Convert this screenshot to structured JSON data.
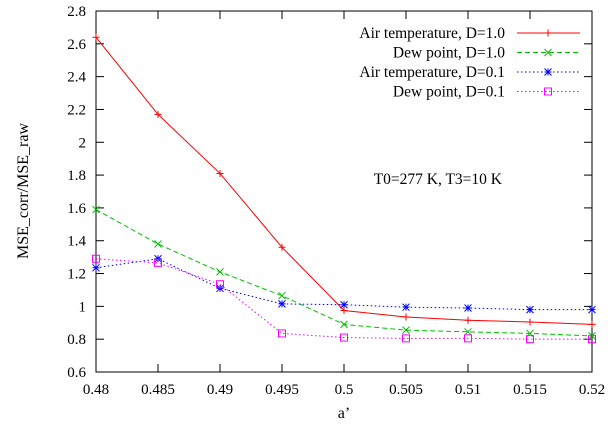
{
  "chart_data": {
    "type": "line",
    "title": "",
    "xlabel": "a’",
    "ylabel": "MSE_corr/MSE_raw",
    "xlim": [
      0.48,
      0.52
    ],
    "ylim": [
      0.6,
      2.8
    ],
    "xticks": [
      "0.48",
      "0.485",
      "0.49",
      "0.495",
      "0.5",
      "0.505",
      "0.51",
      "0.515",
      "0.52"
    ],
    "yticks": [
      "0.6",
      "0.8",
      "1",
      "1.2",
      "1.4",
      "1.6",
      "1.8",
      "2",
      "2.2",
      "2.4",
      "2.6",
      "2.8"
    ],
    "grid": false,
    "legend_position": "top-right",
    "annotation": "T0=277 K, T3=10 K",
    "x": [
      0.48,
      0.485,
      0.49,
      0.495,
      0.5,
      0.505,
      0.51,
      0.515,
      0.52
    ],
    "series": [
      {
        "name": "Air temperature, D=1.0",
        "color": "#ff0000",
        "dash": "solid",
        "marker": "plus",
        "values": [
          2.64,
          2.17,
          1.81,
          1.36,
          0.975,
          0.935,
          0.915,
          0.905,
          0.89
        ]
      },
      {
        "name": "Dew point, D=1.0",
        "color": "#00c000",
        "dash": "dashed",
        "marker": "cross",
        "values": [
          1.59,
          1.38,
          1.21,
          1.065,
          0.89,
          0.855,
          0.845,
          0.835,
          0.82
        ]
      },
      {
        "name": "Air temperature, D=0.1",
        "color": "#0000ff",
        "dash": "dotted",
        "marker": "star",
        "values": [
          1.235,
          1.29,
          1.11,
          1.015,
          1.01,
          0.995,
          0.99,
          0.98,
          0.98
        ]
      },
      {
        "name": "Dew point, D=0.1",
        "color": "#ff00ff",
        "dash": "dotted",
        "marker": "square",
        "values": [
          1.29,
          1.265,
          1.135,
          0.835,
          0.81,
          0.805,
          0.805,
          0.8,
          0.8
        ]
      }
    ]
  }
}
